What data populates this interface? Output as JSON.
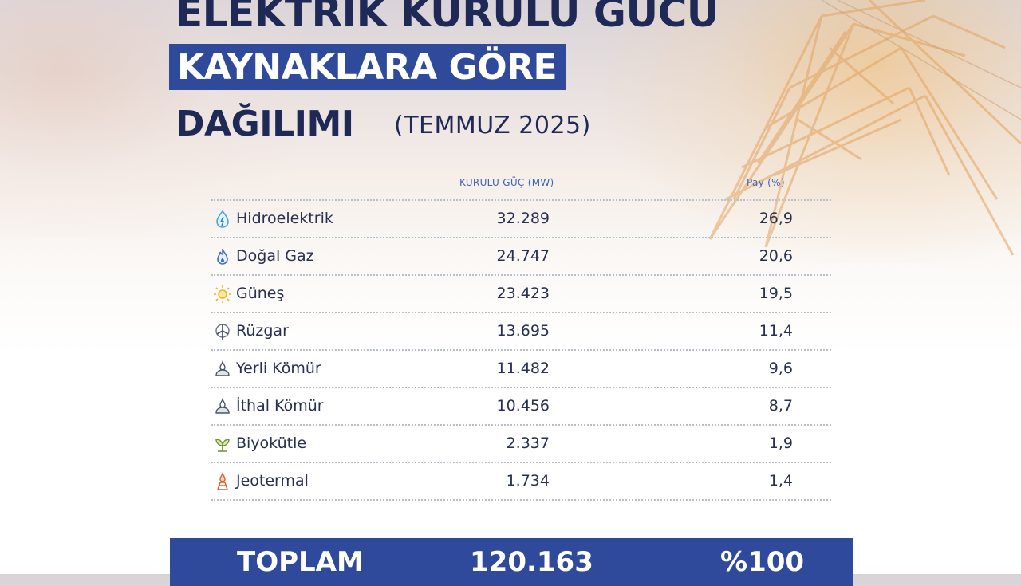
{
  "title": {
    "line1": "ELEKTRİK KURULU GÜCÜ",
    "line2": "KAYNAKLARA GÖRE",
    "line3": "DAĞILIMI",
    "subtitle": "(TEMMUZ 2025)"
  },
  "table": {
    "columns": {
      "mw": "KURULU GÜÇ (MW)",
      "share": "Pay (%)"
    },
    "rows": [
      {
        "name": "Hidroelektrik",
        "mw": "32.289",
        "share": "26,9",
        "icon": "water-drop-icon"
      },
      {
        "name": "Doğal Gaz",
        "mw": "24.747",
        "share": "20,6",
        "icon": "gas-flame-icon"
      },
      {
        "name": "Güneş",
        "mw": "23.423",
        "share": "19,5",
        "icon": "sun-icon"
      },
      {
        "name": "Rüzgar",
        "mw": "13.695",
        "share": "11,4",
        "icon": "wind-turbine-icon"
      },
      {
        "name": "Yerli Kömür",
        "mw": "11.482",
        "share": "9,6",
        "icon": "coal-icon"
      },
      {
        "name": "İthal Kömür",
        "mw": "10.456",
        "share": "8,7",
        "icon": "coal-icon"
      },
      {
        "name": "Biyokütle",
        "mw": "2.337",
        "share": "1,9",
        "icon": "biomass-icon"
      },
      {
        "name": "Jeotermal",
        "mw": "1.734",
        "share": "1,4",
        "icon": "geothermal-icon"
      }
    ]
  },
  "total": {
    "label": "TOPLAM",
    "mw": "120.163",
    "share": "%100"
  },
  "colors": {
    "navy": "#1e2a55",
    "accent": "#2f4a9b",
    "header_blue": "#3d63b8"
  }
}
